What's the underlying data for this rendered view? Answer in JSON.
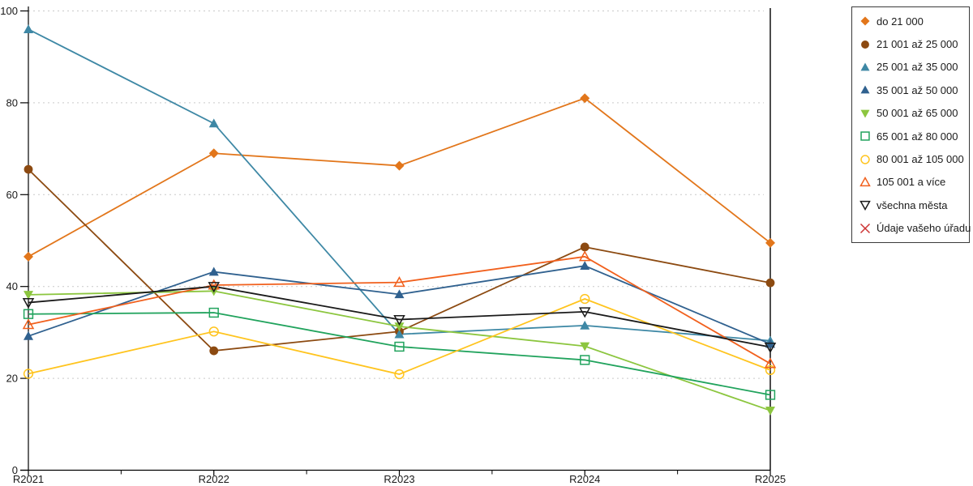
{
  "chart_data": {
    "type": "line",
    "title": "",
    "xlabel": "",
    "ylabel": "",
    "categories": [
      "R2021",
      "R2022",
      "R2023",
      "R2024",
      "R2025"
    ],
    "ylim": [
      0,
      100
    ],
    "yticks": [
      0,
      20,
      40,
      60,
      80,
      100
    ],
    "grid": "horizontal-dashed",
    "legend_position": "right-outside",
    "series": [
      {
        "name": "do 21 000",
        "marker": "diamond",
        "style": "filled",
        "color": "#E2761B",
        "values": [
          46.5,
          69.0,
          66.3,
          81.0,
          49.5
        ]
      },
      {
        "name": "21 001 až 25 000",
        "marker": "circle",
        "style": "filled",
        "color": "#8C4A11",
        "values": [
          65.5,
          26.0,
          30.2,
          48.6,
          40.8
        ]
      },
      {
        "name": "25 001 až 35 000",
        "marker": "triangle-up",
        "style": "filled",
        "color": "#3E88A5",
        "values": [
          96.0,
          75.5,
          29.6,
          31.5,
          28.2
        ]
      },
      {
        "name": "35 001 až 50 000",
        "marker": "triangle-up",
        "style": "filled",
        "color": "#30618F",
        "values": [
          29.2,
          43.2,
          38.3,
          44.5,
          27.5
        ]
      },
      {
        "name": "50 001 až 65 000",
        "marker": "triangle-down",
        "style": "filled",
        "color": "#8CC63F",
        "values": [
          38.2,
          39.0,
          31.3,
          27.0,
          13.0
        ]
      },
      {
        "name": "65 001 až 80 000",
        "marker": "square",
        "style": "open",
        "color": "#21A35D",
        "values": [
          34.0,
          34.3,
          26.9,
          24.0,
          16.4
        ]
      },
      {
        "name": "80 001 až 105 000",
        "marker": "circle",
        "style": "open",
        "color": "#FFC41E",
        "values": [
          21.0,
          30.2,
          20.9,
          37.3,
          21.8
        ]
      },
      {
        "name": "105 001 a více",
        "marker": "triangle-up",
        "style": "open",
        "color": "#F1601D",
        "values": [
          31.7,
          40.3,
          40.9,
          46.5,
          23.2
        ]
      },
      {
        "name": "všechna města",
        "marker": "triangle-down",
        "style": "open",
        "color": "#1A1A1A",
        "values": [
          36.5,
          40.0,
          32.8,
          34.5,
          26.8
        ]
      },
      {
        "name": "Údaje vašeho úřadu",
        "marker": "x",
        "style": "open",
        "color": "#CC3232",
        "values": []
      }
    ],
    "axis_color": "#000000",
    "grid_color": "#C9C9C9",
    "background": "#FFFFFF"
  }
}
